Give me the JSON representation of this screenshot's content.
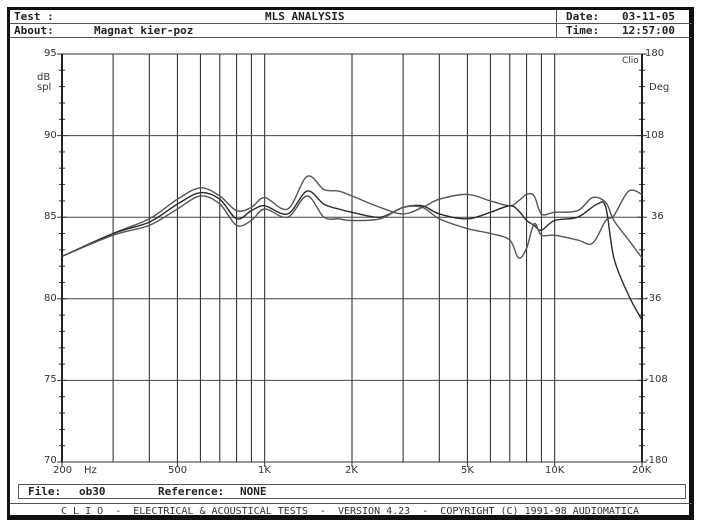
{
  "header": {
    "test_label": "Test :",
    "title": "MLS ANALYSIS",
    "about_label": "About:",
    "about_value": "Magnat kier-poz",
    "date_label": "Date:",
    "date_value": "03-11-05",
    "time_label": "Time:",
    "time_value": "12:57:00"
  },
  "axes": {
    "left_unit_line1": "dB",
    "left_unit_line2": "spl",
    "right_brand": "Clio",
    "right_unit": "Deg",
    "x_unit": "Hz",
    "y_left_ticks": [
      "95",
      "90",
      "85",
      "80",
      "75",
      "70"
    ],
    "y_right_ticks": [
      "180",
      "108",
      "36",
      "-36",
      "-108",
      "-180"
    ],
    "x_ticks": [
      "200",
      "500",
      "1K",
      "2K",
      "5K",
      "10K",
      "20K"
    ]
  },
  "footer": {
    "file_label": "File:",
    "file_value": "ob30",
    "reference_label": "Reference:",
    "reference_value": "NONE",
    "credits": "C L I O  -  ELECTRICAL & ACOUSTICAL TESTS  -  VERSION 4.23  -  COPYRIGHT (C) 1991-98 AUDIOMATICA"
  },
  "chart_data": {
    "type": "line",
    "title": "MLS ANALYSIS",
    "xlabel": "Hz",
    "ylabel": "dB spl",
    "y2label": "Deg",
    "xscale": "log",
    "xlim": [
      200,
      20000
    ],
    "ylim": [
      70,
      95
    ],
    "y2lim": [
      -180,
      180
    ],
    "grid": true,
    "x_gridlines": [
      300,
      400,
      500,
      600,
      700,
      800,
      900,
      1000,
      2000,
      3000,
      4000,
      5000,
      6000,
      7000,
      8000,
      9000,
      10000
    ],
    "y_gridlines": [
      90,
      85,
      80,
      75
    ],
    "series": [
      {
        "name": "curve-upper",
        "points": [
          [
            200,
            82.6
          ],
          [
            300,
            84.0
          ],
          [
            400,
            84.9
          ],
          [
            500,
            86.1
          ],
          [
            600,
            86.8
          ],
          [
            700,
            86.3
          ],
          [
            800,
            85.4
          ],
          [
            900,
            85.6
          ],
          [
            1000,
            86.2
          ],
          [
            1200,
            85.5
          ],
          [
            1400,
            87.5
          ],
          [
            1600,
            86.7
          ],
          [
            1800,
            86.6
          ],
          [
            2000,
            86.3
          ],
          [
            2500,
            85.6
          ],
          [
            3000,
            85.2
          ],
          [
            3500,
            85.6
          ],
          [
            4000,
            86.1
          ],
          [
            5000,
            86.4
          ],
          [
            6000,
            86.0
          ],
          [
            7000,
            85.7
          ],
          [
            7500,
            86.0
          ],
          [
            8000,
            86.4
          ],
          [
            8500,
            86.3
          ],
          [
            9000,
            85.2
          ],
          [
            10000,
            85.3
          ],
          [
            12000,
            85.4
          ],
          [
            13500,
            86.2
          ],
          [
            15000,
            85.9
          ],
          [
            16000,
            84.8
          ],
          [
            18000,
            83.6
          ],
          [
            20000,
            82.5
          ]
        ]
      },
      {
        "name": "curve-middle",
        "points": [
          [
            200,
            82.6
          ],
          [
            300,
            84.0
          ],
          [
            400,
            84.7
          ],
          [
            500,
            85.8
          ],
          [
            600,
            86.5
          ],
          [
            700,
            86.1
          ],
          [
            800,
            84.9
          ],
          [
            900,
            85.4
          ],
          [
            1000,
            85.7
          ],
          [
            1200,
            85.2
          ],
          [
            1400,
            86.6
          ],
          [
            1600,
            85.8
          ],
          [
            1800,
            85.5
          ],
          [
            2000,
            85.3
          ],
          [
            2500,
            85.0
          ],
          [
            3000,
            85.6
          ],
          [
            3500,
            85.7
          ],
          [
            4000,
            85.2
          ],
          [
            5000,
            84.9
          ],
          [
            6000,
            85.3
          ],
          [
            7000,
            85.7
          ],
          [
            7500,
            85.4
          ],
          [
            8000,
            84.8
          ],
          [
            8500,
            84.5
          ],
          [
            9000,
            84.2
          ],
          [
            10000,
            84.8
          ],
          [
            12000,
            85.0
          ],
          [
            14000,
            85.8
          ],
          [
            15000,
            85.6
          ],
          [
            16000,
            82.5
          ],
          [
            18000,
            80.2
          ],
          [
            20000,
            78.7
          ]
        ]
      },
      {
        "name": "curve-lower",
        "points": [
          [
            200,
            82.6
          ],
          [
            300,
            83.9
          ],
          [
            400,
            84.5
          ],
          [
            500,
            85.5
          ],
          [
            600,
            86.3
          ],
          [
            700,
            85.8
          ],
          [
            800,
            84.5
          ],
          [
            900,
            84.8
          ],
          [
            1000,
            85.5
          ],
          [
            1200,
            85.0
          ],
          [
            1400,
            86.3
          ],
          [
            1600,
            85.0
          ],
          [
            1800,
            84.9
          ],
          [
            2000,
            84.8
          ],
          [
            2500,
            84.9
          ],
          [
            3000,
            85.6
          ],
          [
            3500,
            85.6
          ],
          [
            4000,
            84.9
          ],
          [
            5000,
            84.3
          ],
          [
            6000,
            84.0
          ],
          [
            7000,
            83.6
          ],
          [
            7500,
            82.5
          ],
          [
            8000,
            83.1
          ],
          [
            8500,
            84.6
          ],
          [
            9000,
            83.9
          ],
          [
            10000,
            83.9
          ],
          [
            12000,
            83.6
          ],
          [
            13500,
            83.4
          ],
          [
            15000,
            84.8
          ],
          [
            16000,
            85.1
          ],
          [
            18000,
            86.6
          ],
          [
            20000,
            86.4
          ]
        ]
      }
    ]
  }
}
